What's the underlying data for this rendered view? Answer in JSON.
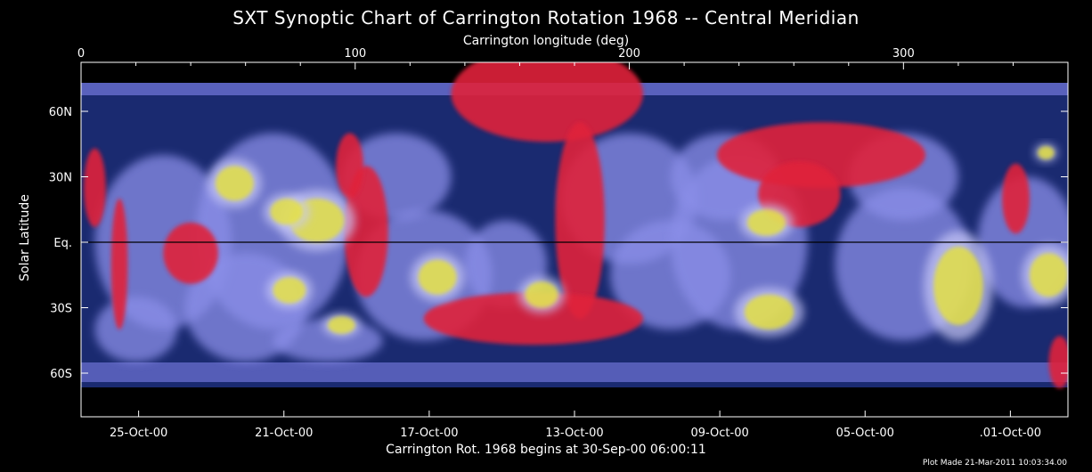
{
  "chart_data": {
    "type": "heatmap",
    "title": "SXT Synoptic Chart of Carrington Rotation 1968 -- Central Meridian",
    "top_axis": {
      "label": "Carrington longitude (deg)",
      "range": [
        0,
        360
      ],
      "ticks": [
        {
          "value": 0,
          "label": "0"
        },
        {
          "value": 100,
          "label": "100"
        },
        {
          "value": 200,
          "label": "200"
        },
        {
          "value": 300,
          "label": "300"
        }
      ]
    },
    "bottom_axis": {
      "label": "Carrington Rot. 1968 begins at 30-Sep-00 06:00:11",
      "ticks": [
        {
          "value": 21,
          "label": "25-Oct-00"
        },
        {
          "value": 74,
          "label": "21-Oct-00"
        },
        {
          "value": 127,
          "label": "17-Oct-00"
        },
        {
          "value": 180,
          "label": "13-Oct-00"
        },
        {
          "value": 233,
          "label": "09-Oct-00"
        },
        {
          "value": 286,
          "label": "05-Oct-00"
        },
        {
          "value": 339,
          "label": ".01-Oct-00"
        }
      ]
    },
    "y_axis": {
      "label": "Solar Latitude",
      "range": [
        -90,
        90
      ],
      "ticks": [
        {
          "value": 60,
          "label": "60N"
        },
        {
          "value": 30,
          "label": "30N"
        },
        {
          "value": 0,
          "label": "Eq."
        },
        {
          "value": -30,
          "label": "30S"
        },
        {
          "value": -60,
          "label": "60S"
        }
      ]
    },
    "colors": {
      "background_disk": "#6f74d6",
      "coronal_hole": "#e0203a",
      "deep_space": "#1a2a70",
      "active_region": "#e6e23a",
      "frame": "#ffffff"
    },
    "coronal_holes": [
      {
        "lon": 5,
        "lat": 25,
        "rlon": 4,
        "rlat": 18
      },
      {
        "lon": 14,
        "lat": -10,
        "rlon": 3,
        "rlat": 30
      },
      {
        "lon": 104,
        "lat": 5,
        "rlon": 8,
        "rlat": 30
      },
      {
        "lon": 98,
        "lat": 35,
        "rlon": 5,
        "rlat": 15
      },
      {
        "lon": 170,
        "lat": 68,
        "rlon": 35,
        "rlat": 22
      },
      {
        "lon": 182,
        "lat": 10,
        "rlon": 9,
        "rlat": 45
      },
      {
        "lon": 165,
        "lat": -35,
        "rlon": 40,
        "rlat": 12
      },
      {
        "lon": 270,
        "lat": 40,
        "rlon": 38,
        "rlat": 15
      },
      {
        "lon": 262,
        "lat": 22,
        "rlon": 15,
        "rlat": 15
      },
      {
        "lon": 341,
        "lat": 20,
        "rlon": 5,
        "rlat": 16
      },
      {
        "lon": 357,
        "lat": -55,
        "rlon": 4,
        "rlat": 12
      },
      {
        "lon": 40,
        "lat": -5,
        "rlon": 10,
        "rlat": 14
      }
    ],
    "active_regions": [
      {
        "lon": 56,
        "lat": 27,
        "rlon": 7,
        "rlat": 8
      },
      {
        "lon": 86,
        "lat": 10,
        "rlon": 10,
        "rlat": 10
      },
      {
        "lon": 75,
        "lat": 14,
        "rlon": 6,
        "rlat": 6
      },
      {
        "lon": 76,
        "lat": -22,
        "rlon": 6,
        "rlat": 6
      },
      {
        "lon": 95,
        "lat": -38,
        "rlon": 5,
        "rlat": 4
      },
      {
        "lon": 130,
        "lat": -16,
        "rlon": 7,
        "rlat": 8
      },
      {
        "lon": 168,
        "lat": -24,
        "rlon": 6,
        "rlat": 6
      },
      {
        "lon": 250,
        "lat": 9,
        "rlon": 7,
        "rlat": 6
      },
      {
        "lon": 251,
        "lat": -32,
        "rlon": 9,
        "rlat": 8
      },
      {
        "lon": 320,
        "lat": -20,
        "rlon": 9,
        "rlat": 18
      },
      {
        "lon": 353,
        "lat": -15,
        "rlon": 7,
        "rlat": 10
      },
      {
        "lon": 352,
        "lat": 41,
        "rlon": 3,
        "rlat": 3
      }
    ],
    "equator_line": true
  },
  "footer_note": "Plot Made 21-Mar-2011 10:03:34.00"
}
